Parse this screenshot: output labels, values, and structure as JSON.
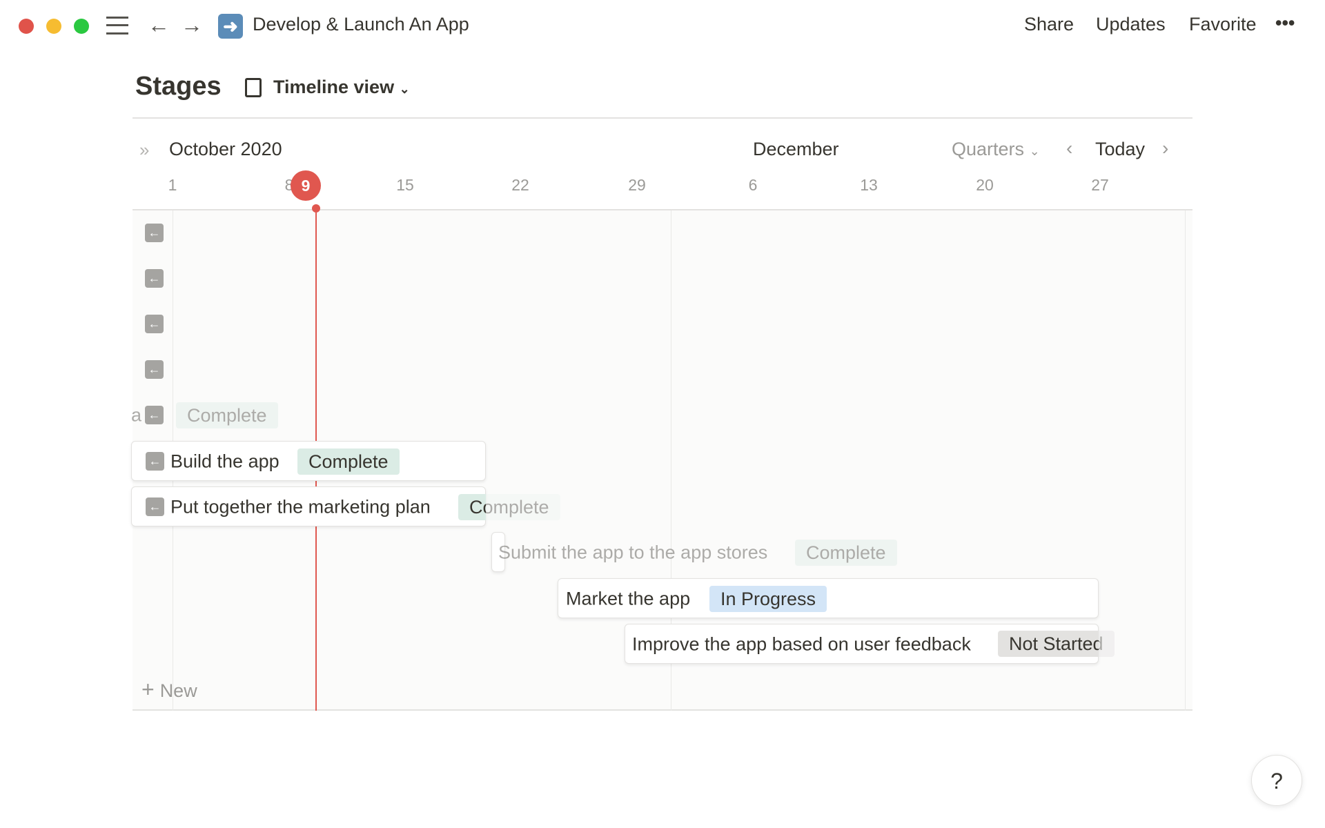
{
  "window": {
    "title": "Develop & Launch An App",
    "page_icon": "arrow-right-emoji-icon"
  },
  "topbar": {
    "share": "Share",
    "updates": "Updates",
    "favorite": "Favorite",
    "more": "•••"
  },
  "view": {
    "title": "Stages",
    "view_name": "Timeline view"
  },
  "timeline": {
    "month_left": "October 2020",
    "month_mid": "December",
    "scale": "Quarters",
    "today": "Today",
    "today_day": "9",
    "days": [
      "1",
      "8",
      "15",
      "22",
      "29",
      "6",
      "13",
      "20",
      "27"
    ],
    "rows": [
      {
        "name": "a",
        "status": "Complete"
      },
      {
        "name": "Build the app",
        "status": "Complete"
      },
      {
        "name": "Put together the marketing plan",
        "status": "Complete"
      },
      {
        "name": "Submit the app to the app stores",
        "status": "Complete"
      },
      {
        "name": "Market the app",
        "status": "In Progress"
      },
      {
        "name": "Improve the app based on user feedback",
        "status": "Not Started"
      }
    ],
    "new_label": "New"
  },
  "help": "?",
  "colors": {
    "complete": "#dbece5",
    "in_progress": "#d3e5f7",
    "not_started": "#e3e2e0",
    "today_red": "#e0574f"
  }
}
